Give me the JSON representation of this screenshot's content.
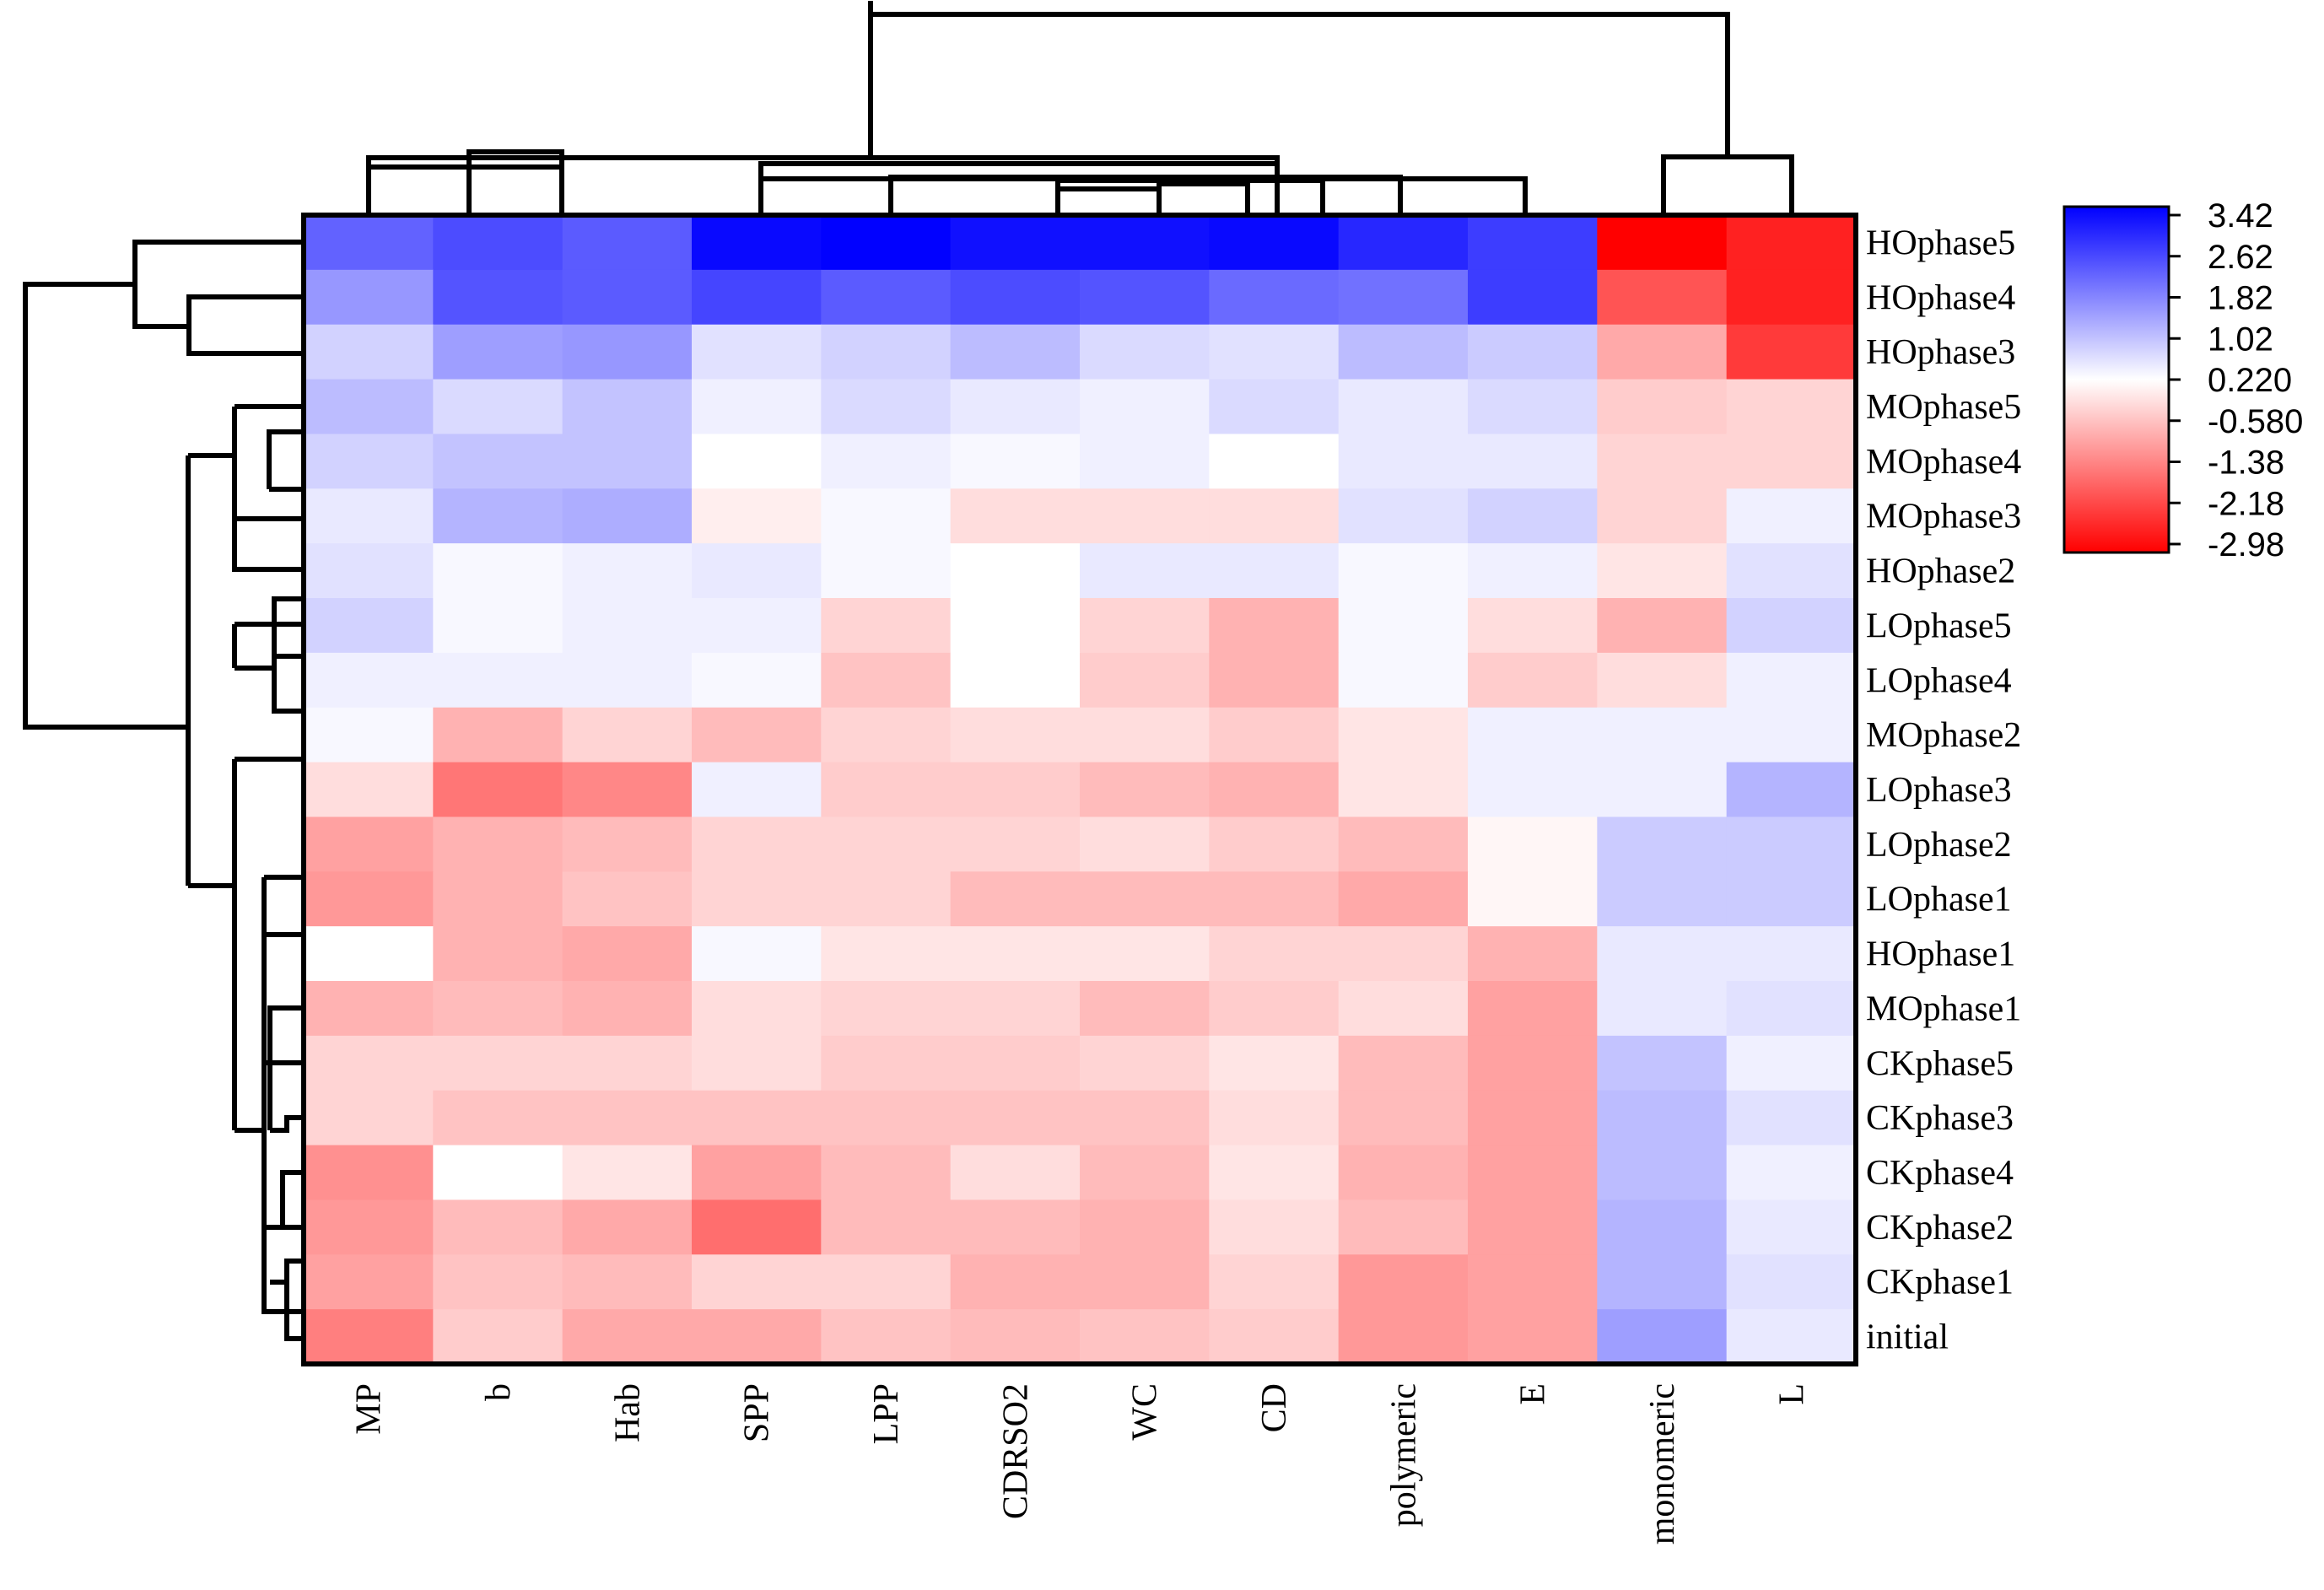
{
  "chart_data": {
    "type": "heatmap",
    "title": "",
    "columns": [
      "MP",
      "b",
      "Hab",
      "SPP",
      "LPP",
      "CDRSO2",
      "WC",
      "CD",
      "polymeric",
      "E",
      "monomeric",
      "L"
    ],
    "rows": [
      "HOphase5",
      "HOphase4",
      "HOphase3",
      "MOphase5",
      "MOphase4",
      "MOphase3",
      "HOphase2",
      "LOphase5",
      "LOphase4",
      "MOphase2",
      "LOphase3",
      "LOphase2",
      "LOphase1",
      "HOphase1",
      "MOphase1",
      "CKphase5",
      "CKphase3",
      "CKphase4",
      "CKphase2",
      "CKphase1",
      "initial"
    ],
    "values": [
      [
        2.1,
        2.4,
        2.2,
        3.3,
        3.4,
        3.2,
        3.2,
        3.3,
        2.9,
        2.6,
        -2.98,
        -2.6
      ],
      [
        1.4,
        2.3,
        2.2,
        2.5,
        2.2,
        2.4,
        2.3,
        2.0,
        1.9,
        2.6,
        -2.0,
        -2.6
      ],
      [
        0.6,
        1.3,
        1.4,
        0.4,
        0.6,
        0.9,
        0.5,
        0.4,
        0.9,
        0.7,
        -1.0,
        -2.3
      ],
      [
        0.9,
        0.5,
        0.8,
        0.2,
        0.5,
        0.3,
        0.2,
        0.5,
        0.3,
        0.5,
        -0.6,
        -0.5
      ],
      [
        0.6,
        0.8,
        0.8,
        0.0,
        0.2,
        0.1,
        0.2,
        0.0,
        0.3,
        0.3,
        -0.5,
        -0.5
      ],
      [
        0.3,
        1.0,
        1.1,
        -0.2,
        0.1,
        -0.4,
        -0.4,
        -0.4,
        0.4,
        0.6,
        -0.5,
        0.2
      ],
      [
        0.4,
        0.1,
        0.2,
        0.3,
        0.1,
        0.0,
        0.3,
        0.3,
        0.1,
        0.2,
        -0.3,
        0.4
      ],
      [
        0.6,
        0.1,
        0.2,
        0.2,
        -0.5,
        0.0,
        -0.5,
        -0.9,
        0.1,
        -0.4,
        -0.9,
        0.6
      ],
      [
        0.2,
        0.2,
        0.2,
        0.1,
        -0.7,
        0.0,
        -0.6,
        -0.9,
        0.1,
        -0.6,
        -0.4,
        0.2
      ],
      [
        0.1,
        -0.9,
        -0.5,
        -0.8,
        -0.5,
        -0.4,
        -0.4,
        -0.6,
        -0.3,
        0.2,
        0.2,
        0.2
      ],
      [
        -0.4,
        -1.6,
        -1.4,
        0.2,
        -0.6,
        -0.6,
        -0.8,
        -0.9,
        -0.3,
        0.2,
        0.2,
        1.0
      ],
      [
        -1.1,
        -0.9,
        -0.8,
        -0.5,
        -0.5,
        -0.5,
        -0.4,
        -0.6,
        -0.8,
        -0.1,
        0.7,
        0.7
      ],
      [
        -1.2,
        -0.9,
        -0.7,
        -0.5,
        -0.5,
        -0.8,
        -0.8,
        -0.8,
        -1.0,
        -0.1,
        0.7,
        0.7
      ],
      [
        0.0,
        -0.9,
        -1.0,
        0.1,
        -0.3,
        -0.3,
        -0.3,
        -0.5,
        -0.5,
        -0.9,
        0.3,
        0.3
      ],
      [
        -0.9,
        -0.8,
        -0.9,
        -0.4,
        -0.5,
        -0.5,
        -0.8,
        -0.6,
        -0.4,
        -1.1,
        0.3,
        0.4
      ],
      [
        -0.5,
        -0.5,
        -0.5,
        -0.4,
        -0.6,
        -0.6,
        -0.5,
        -0.3,
        -0.8,
        -1.1,
        0.8,
        0.2
      ],
      [
        -0.5,
        -0.7,
        -0.7,
        -0.7,
        -0.7,
        -0.7,
        -0.7,
        -0.4,
        -0.8,
        -1.1,
        0.9,
        0.4
      ],
      [
        -1.3,
        0.0,
        -0.3,
        -1.1,
        -0.8,
        -0.4,
        -0.8,
        -0.3,
        -0.9,
        -1.1,
        0.9,
        0.2
      ],
      [
        -1.2,
        -0.8,
        -1.0,
        -1.7,
        -0.8,
        -0.8,
        -0.9,
        -0.4,
        -0.8,
        -1.1,
        1.0,
        0.3
      ],
      [
        -1.1,
        -0.7,
        -0.8,
        -0.5,
        -0.5,
        -0.9,
        -0.9,
        -0.5,
        -1.2,
        -1.1,
        1.0,
        0.4
      ],
      [
        -1.5,
        -0.6,
        -1.0,
        -1.0,
        -0.7,
        -0.8,
        -0.7,
        -0.6,
        -1.2,
        -1.1,
        1.3,
        0.3
      ]
    ],
    "scale_min": -2.98,
    "scale_max": 3.42,
    "legend_ticks": [
      "3.42",
      "2.62",
      "1.82",
      "1.02",
      "0.220",
      "-0.580",
      "-1.38",
      "-2.18",
      "-2.98"
    ],
    "legend_tick_values": [
      3.42,
      2.62,
      1.82,
      1.02,
      0.22,
      -0.58,
      -1.38,
      -2.18,
      -2.98
    ],
    "legend_placement": "right",
    "colors": {
      "low": "#ff0000",
      "mid": "#ffffff",
      "high": "#0000ff"
    },
    "row_dendrogram": true,
    "column_dendrogram": true
  }
}
